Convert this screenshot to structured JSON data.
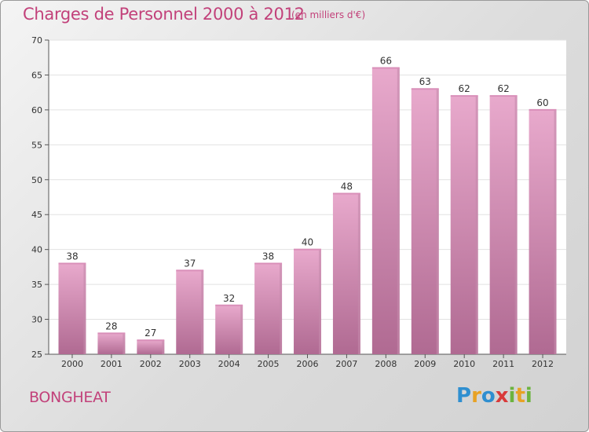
{
  "header": {
    "title": "Charges de Personnel 2000 à 2012",
    "subtitle": "(en milliers d'€)"
  },
  "footer": {
    "place": "BONGHEAT",
    "logo_text": "Proxiti"
  },
  "colors": {
    "title": "#c2417a",
    "bar_top": "#e8a9cc",
    "bar_bottom": "#b06a92",
    "bar_side": "#c58aab"
  },
  "chart_data": {
    "type": "bar",
    "categories": [
      "2000",
      "2001",
      "2002",
      "2003",
      "2004",
      "2005",
      "2006",
      "2007",
      "2008",
      "2009",
      "2010",
      "2011",
      "2012"
    ],
    "values": [
      38,
      28,
      27,
      37,
      32,
      38,
      40,
      48,
      66,
      63,
      62,
      62,
      60
    ],
    "ylim": [
      25,
      70
    ],
    "yticks": [
      25,
      30,
      35,
      40,
      45,
      50,
      55,
      60,
      65,
      70
    ],
    "grid": true
  }
}
